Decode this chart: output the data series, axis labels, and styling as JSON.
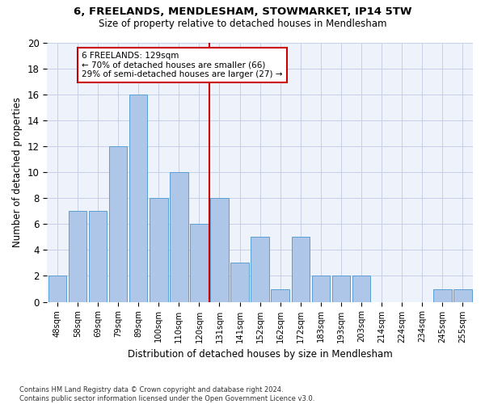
{
  "title1": "6, FREELANDS, MENDLESHAM, STOWMARKET, IP14 5TW",
  "title2": "Size of property relative to detached houses in Mendlesham",
  "xlabel": "Distribution of detached houses by size in Mendlesham",
  "ylabel": "Number of detached properties",
  "categories": [
    "48sqm",
    "58sqm",
    "69sqm",
    "79sqm",
    "89sqm",
    "100sqm",
    "110sqm",
    "120sqm",
    "131sqm",
    "141sqm",
    "152sqm",
    "162sqm",
    "172sqm",
    "183sqm",
    "193sqm",
    "203sqm",
    "214sqm",
    "224sqm",
    "234sqm",
    "245sqm",
    "255sqm"
  ],
  "values": [
    2,
    7,
    7,
    12,
    16,
    8,
    10,
    6,
    8,
    3,
    5,
    1,
    5,
    2,
    2,
    2,
    0,
    0,
    0,
    1,
    1
  ],
  "bar_color": "#aec6e8",
  "bar_edge_color": "#5a9fd4",
  "vline_color": "#cc0000",
  "annotation_text": "6 FREELANDS: 129sqm\n← 70% of detached houses are smaller (66)\n29% of semi-detached houses are larger (27) →",
  "annotation_box_color": "#cc0000",
  "ylim": [
    0,
    20
  ],
  "yticks": [
    0,
    2,
    4,
    6,
    8,
    10,
    12,
    14,
    16,
    18,
    20
  ],
  "footnote": "Contains HM Land Registry data © Crown copyright and database right 2024.\nContains public sector information licensed under the Open Government Licence v3.0.",
  "background_color": "#eef2fa",
  "grid_color": "#c8d0e8"
}
